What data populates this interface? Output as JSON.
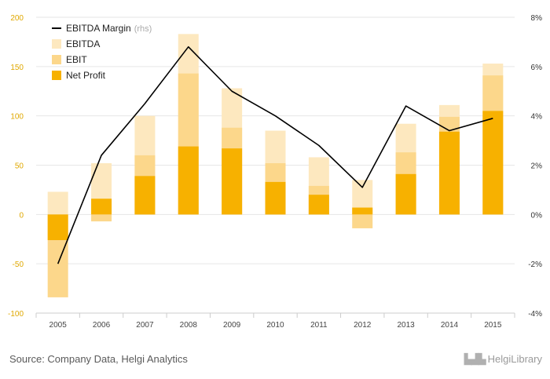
{
  "chart_data": {
    "type": "bar+line",
    "categories": [
      "2005",
      "2006",
      "2007",
      "2008",
      "2009",
      "2010",
      "2011",
      "2012",
      "2013",
      "2014",
      "2015"
    ],
    "series": [
      {
        "name": "EBITDA",
        "values": [
          23,
          52,
          100,
          183,
          128,
          85,
          58,
          35,
          92,
          111,
          153
        ]
      },
      {
        "name": "EBIT",
        "values": [
          -84,
          -7,
          60,
          143,
          88,
          52,
          29,
          -14,
          63,
          99,
          141
        ]
      },
      {
        "name": "Net Profit",
        "values": [
          -26,
          16,
          39,
          69,
          67,
          33,
          20,
          7,
          41,
          84,
          105
        ]
      },
      {
        "name": "EBITDA Margin",
        "axis": "rhs",
        "values": [
          -2.0,
          2.4,
          4.5,
          6.8,
          5.0,
          4.0,
          2.8,
          1.1,
          4.4,
          3.4,
          3.9
        ]
      }
    ],
    "y_left": {
      "ticks": [
        -100,
        -50,
        0,
        50,
        100,
        150,
        200
      ],
      "ylim": [
        -100,
        200
      ]
    },
    "y_right": {
      "ticks": [
        "-4%",
        "-2%",
        "0%",
        "2%",
        "4%",
        "6%",
        "8%"
      ],
      "ylim": [
        -4,
        8
      ]
    },
    "legend": {
      "position": "top-left",
      "items": [
        {
          "label": "EBITDA Margin",
          "suffix": "(rhs)",
          "kind": "line"
        },
        {
          "label": "EBITDA",
          "kind": "box"
        },
        {
          "label": "EBIT",
          "kind": "box"
        },
        {
          "label": "Net Profit",
          "kind": "box"
        }
      ]
    },
    "colors": {
      "EBITDA": "#fde8bf",
      "EBIT": "#fcd78b",
      "Net Profit": "#f7b100",
      "line": "#000000",
      "grid": "#e6e6e6",
      "tick_left": "#e0a800",
      "tick_right": "#333333"
    }
  },
  "footer": {
    "source": "Source: Company Data, Helgi Analytics",
    "logo_name": "HelgiLibrary",
    "logo_icon": "city-skyline-icon"
  }
}
